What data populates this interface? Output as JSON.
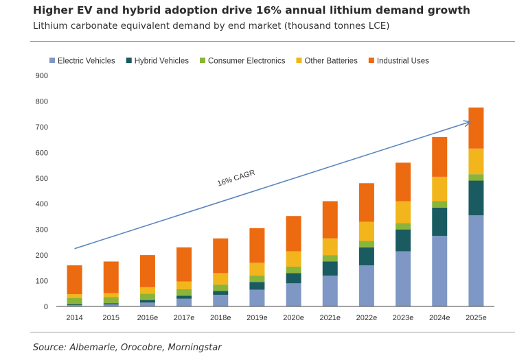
{
  "header": {
    "title": "Higher EV and hybrid adoption drive 16% annual lithium demand growth",
    "subtitle": "Lithium carbonate equivalent demand by end market (thousand tonnes LCE)"
  },
  "footer": {
    "source": "Source: Albemarle, Orocobre, Morningstar"
  },
  "chart_data": {
    "type": "bar",
    "stacked": true,
    "title": "",
    "xlabel": "",
    "ylabel": "",
    "ylim": [
      0,
      900
    ],
    "yticks": [
      0,
      100,
      200,
      300,
      400,
      500,
      600,
      700,
      800,
      900
    ],
    "grid": false,
    "legend_position": "top-left",
    "categories": [
      "2014",
      "2015",
      "2016e",
      "2017e",
      "2018e",
      "2019e",
      "2020e",
      "2021e",
      "2022e",
      "2023e",
      "2024e",
      "2025e"
    ],
    "series": [
      {
        "name": "Electric Vehicles",
        "color": "#7f97c4",
        "values": [
          5,
          8,
          15,
          30,
          45,
          65,
          90,
          120,
          160,
          215,
          275,
          355
        ]
      },
      {
        "name": "Hybrid Vehicles",
        "color": "#1a5b61",
        "values": [
          3,
          4,
          10,
          12,
          15,
          30,
          40,
          55,
          70,
          85,
          110,
          135
        ]
      },
      {
        "name": "Consumer Electronics",
        "color": "#8bb43a",
        "values": [
          25,
          25,
          25,
          25,
          25,
          25,
          25,
          25,
          25,
          25,
          25,
          25
        ]
      },
      {
        "name": "Other Batteries",
        "color": "#f2b51c",
        "values": [
          15,
          15,
          25,
          30,
          45,
          50,
          60,
          65,
          75,
          85,
          95,
          100
        ]
      },
      {
        "name": "Industrial Uses",
        "color": "#ec6a10",
        "values": [
          112,
          123,
          125,
          133,
          135,
          135,
          137,
          145,
          150,
          150,
          155,
          160
        ]
      }
    ],
    "annotation": {
      "text": "16% CAGR",
      "arrow_from": {
        "x": "2014",
        "y": 225
      },
      "arrow_to": {
        "x": "2025e",
        "y": 720
      },
      "color": "#5a85c0"
    }
  }
}
